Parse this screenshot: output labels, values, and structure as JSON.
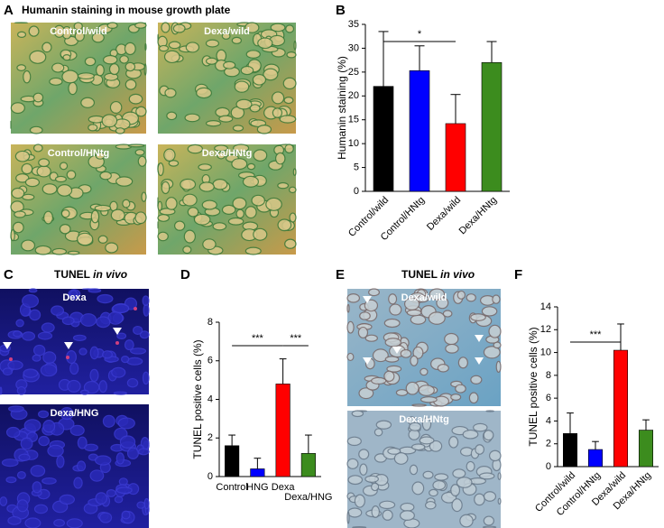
{
  "panels": {
    "A": {
      "letter": "A",
      "title": "Humanin staining in mouse growth plate",
      "images": [
        "Control/wild",
        "Dexa/wild",
        "Control/HNtg",
        "Dexa/HNtg"
      ]
    },
    "B": {
      "letter": "B"
    },
    "C": {
      "letter": "C",
      "title": [
        "TUNEL",
        "in vivo"
      ],
      "images": [
        "Dexa",
        "Dexa/HNG"
      ]
    },
    "D": {
      "letter": "D"
    },
    "E": {
      "letter": "E",
      "title": [
        "TUNEL",
        "in vivo"
      ],
      "images": [
        "Dexa/wild",
        "Dexa/HNtg"
      ]
    },
    "F": {
      "letter": "F"
    }
  },
  "chart_data": [
    {
      "type": "bar",
      "ylabel": "Humanin staining (%)",
      "categories": [
        "Control/wild",
        "Control/HNtg",
        "Dexa/wild",
        "Dexa/HNtg"
      ],
      "values": [
        22,
        25.3,
        14.2,
        27
      ],
      "errors": [
        11.5,
        5.2,
        6.1,
        4.4
      ],
      "colors": [
        "#000000",
        "#0000ff",
        "#ff0000",
        "#3c8c1e"
      ],
      "ylim": [
        0,
        35
      ],
      "yticks": [
        0,
        5,
        10,
        15,
        20,
        25,
        30,
        35
      ],
      "significance": [
        {
          "label": "*",
          "between": [
            "Control/wild",
            "Dexa/wild"
          ]
        }
      ]
    },
    {
      "type": "bar",
      "ylabel": "TUNEL positive cells (%)",
      "categories": [
        "Control",
        "HNG",
        "Dexa",
        "Dexa/HNG"
      ],
      "values": [
        1.6,
        0.4,
        4.8,
        1.2
      ],
      "errors": [
        0.55,
        0.55,
        1.3,
        0.95
      ],
      "colors": [
        "#000000",
        "#0000ff",
        "#ff0000",
        "#3c8c1e"
      ],
      "ylim": [
        0,
        8
      ],
      "yticks": [
        0,
        2,
        4,
        6,
        8
      ],
      "significance": [
        {
          "label": "***",
          "between": [
            "Control",
            "Dexa"
          ]
        },
        {
          "label": "***",
          "between": [
            "Dexa",
            "Dexa/HNG"
          ]
        }
      ]
    },
    {
      "type": "bar",
      "ylabel": "TUNEL positive cells (%)",
      "categories": [
        "Control/wild",
        "Control/HNtg",
        "Dexa/wild",
        "Dexa/HNtg"
      ],
      "values": [
        2.9,
        1.5,
        10.2,
        3.2
      ],
      "errors": [
        1.8,
        0.7,
        2.3,
        0.9
      ],
      "colors": [
        "#000000",
        "#0000ff",
        "#ff0000",
        "#3c8c1e"
      ],
      "ylim": [
        0,
        14
      ],
      "yticks": [
        0,
        2,
        4,
        6,
        8,
        10,
        12,
        14
      ],
      "significance": [
        {
          "label": "***",
          "between": [
            "Control/wild",
            "Dexa/wild"
          ]
        }
      ]
    }
  ]
}
